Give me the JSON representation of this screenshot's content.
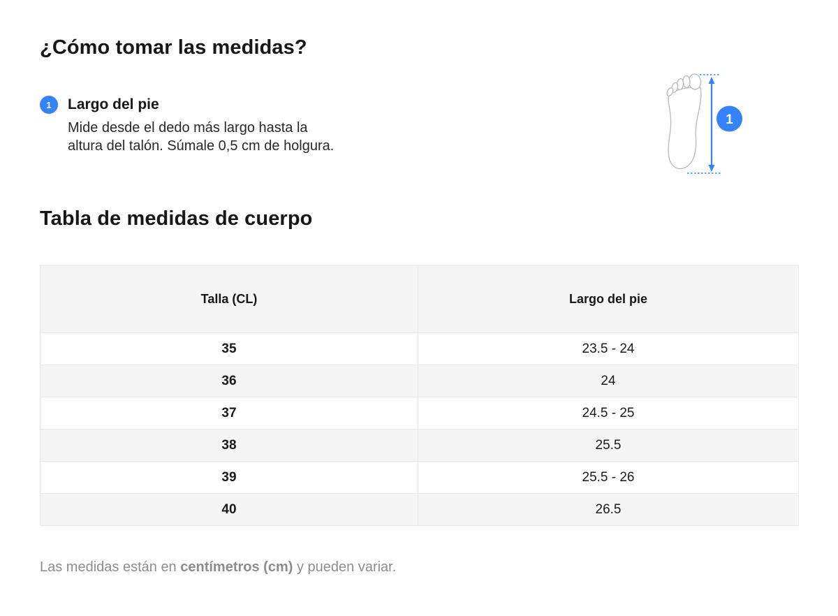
{
  "page": {
    "title": "¿Cómo tomar las medidas?",
    "accent_color": "#3483fa",
    "alt_row_color": "#f5f5f5",
    "border_color": "#e8e8e8",
    "footnote_color": "#8c8c8c"
  },
  "instructions": {
    "steps": [
      {
        "number": "1",
        "label": "Largo del pie",
        "description_lines": [
          "Mide desde el dedo más largo hasta la",
          "altura del talón. Súmale 0,5 cm de holgura."
        ]
      }
    ]
  },
  "illustration": {
    "name": "foot-length-measurement-diagram",
    "badge": "1"
  },
  "size_table": {
    "title": "Tabla de medidas de cuerpo",
    "columns": [
      "Talla (CL)",
      "Largo del pie"
    ],
    "rows": [
      [
        "35",
        "23.5 - 24"
      ],
      [
        "36",
        "24"
      ],
      [
        "37",
        "24.5 - 25"
      ],
      [
        "38",
        "25.5"
      ],
      [
        "39",
        "25.5 - 26"
      ],
      [
        "40",
        "26.5"
      ]
    ]
  },
  "footnote": {
    "prefix": "Las medidas están en ",
    "bold": "centímetros (cm)",
    "suffix": " y pueden variar."
  }
}
